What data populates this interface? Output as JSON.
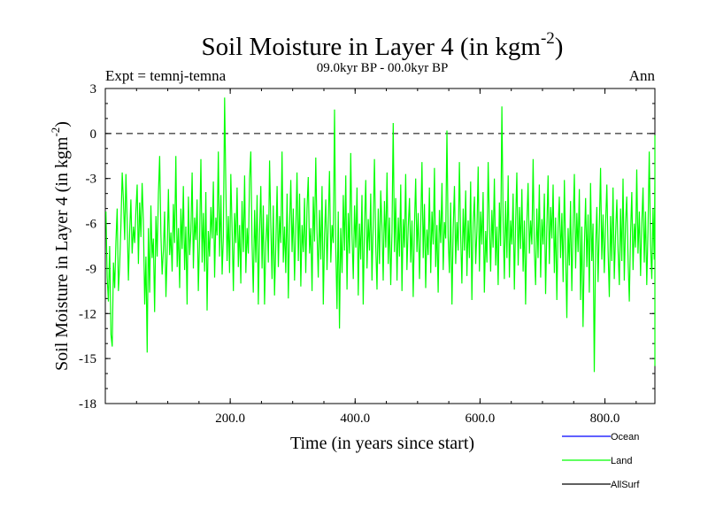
{
  "chart_data": {
    "type": "line",
    "title": "Soil Moisture in Layer 4 (in kgm",
    "title_sup": "-2",
    "title_close": ")",
    "subtitle": "09.0kyr BP - 00.0kyr BP",
    "experiment": "Expt = temnj-temna",
    "season": "Ann",
    "xlabel": "Time (in years since start)",
    "ylabel": "Soil Moisture in Layer 4 (in kgm",
    "ylabel_sup": "-2",
    "ylabel_close": ")",
    "xlim": [
      0,
      880
    ],
    "ylim": [
      -18,
      3
    ],
    "x_ticks": [
      "200.0",
      "400.0",
      "600.0",
      "800.0"
    ],
    "x_tick_values": [
      200,
      400,
      600,
      800
    ],
    "y_ticks": [
      "3",
      "0",
      "-3",
      "-6",
      "-9",
      "-12",
      "-15",
      "-18"
    ],
    "y_tick_values": [
      3,
      0,
      -3,
      -6,
      -9,
      -12,
      -15,
      -18
    ],
    "reference_line": 0,
    "legend": [
      {
        "name": "Ocean",
        "color": "#0000ff"
      },
      {
        "name": "Land",
        "color": "#00ff00"
      },
      {
        "name": "AllSurf",
        "color": "#000000"
      }
    ],
    "series": [
      {
        "name": "Land",
        "color": "#00ff00",
        "x_start": 1,
        "x_step": 2,
        "values": [
          -5.2,
          -9.6,
          -11.2,
          -7.5,
          -13.4,
          -14.2,
          -8.6,
          -10.3,
          -7.2,
          -5.0,
          -10.5,
          -8.8,
          -6.2,
          -2.6,
          -4.5,
          -7.1,
          -2.7,
          -5.9,
          -9.8,
          -6.6,
          -4.4,
          -8.0,
          -6.2,
          -7.3,
          -5.1,
          -3.4,
          -8.7,
          -4.6,
          -6.9,
          -3.3,
          -5.8,
          -11.4,
          -8.2,
          -14.6,
          -6.3,
          -10.6,
          -4.8,
          -8.3,
          -7.0,
          -11.9,
          -5.5,
          -8.2,
          -4.0,
          -1.5,
          -6.7,
          -9.4,
          -7.8,
          -5.2,
          -10.9,
          -7.9,
          -3.7,
          -8.1,
          -6.6,
          -9.2,
          -4.7,
          -7.3,
          -1.5,
          -8.9,
          -6.3,
          -10.3,
          -5.0,
          -7.7,
          -3.5,
          -9.1,
          -6.2,
          -11.4,
          -4.2,
          -8.1,
          -6.5,
          -2.6,
          -9.0,
          -5.6,
          -7.1,
          -4.4,
          -10.5,
          -6.8,
          -1.7,
          -8.6,
          -5.3,
          -9.2,
          -3.9,
          -11.8,
          -6.5,
          -8.2,
          -4.9,
          -7.0,
          -3.2,
          -9.6,
          -5.6,
          -6.8,
          -1.2,
          -8.2,
          -4.1,
          -9.4,
          -6.8,
          2.4,
          -3.6,
          -8.5,
          -5.5,
          -9.3,
          -2.7,
          -6.5,
          -10.5,
          -5.3,
          -7.3,
          -3.6,
          -8.9,
          -6.1,
          -10.0,
          -4.5,
          -7.9,
          -2.8,
          -9.3,
          -6.3,
          -8.0,
          -3.0,
          -1.2,
          -7.3,
          -10.6,
          -5.1,
          -8.6,
          -4.1,
          -11.4,
          -6.6,
          -3.5,
          -9.0,
          -4.8,
          -11.4,
          -7.3,
          -5.4,
          -8.6,
          -1.8,
          -6.1,
          -9.7,
          -4.8,
          -10.8,
          -7.3,
          -3.5,
          -8.9,
          -5.5,
          -7.3,
          -1.2,
          -8.6,
          -6.2,
          -9.3,
          -4.0,
          -11.0,
          -6.1,
          -3.1,
          -7.9,
          -5.0,
          -9.8,
          -6.5,
          -2.6,
          -8.5,
          -4.0,
          -10.2,
          -6.1,
          -7.9,
          -4.3,
          -9.3,
          -5.0,
          -2.9,
          -8.0,
          -6.3,
          -10.5,
          -4.2,
          -7.2,
          -1.6,
          -6.6,
          -9.6,
          -5.1,
          -8.4,
          -3.5,
          -11.4,
          -6.8,
          -4.4,
          -9.1,
          -5.9,
          -2.5,
          -8.6,
          -6.1,
          -7.3,
          1.6,
          -7.6,
          -11.7,
          -5.2,
          -13.0,
          -6.3,
          -9.3,
          -4.1,
          -7.8,
          -2.8,
          -10.4,
          -5.3,
          -8.0,
          -1.3,
          -6.7,
          -9.7,
          -4.8,
          -7.6,
          -3.6,
          -10.8,
          -6.0,
          -8.4,
          -4.1,
          -11.4,
          -6.0,
          -3.1,
          -9.0,
          -5.7,
          -7.8,
          -4.0,
          -9.8,
          -6.1,
          -1.7,
          -7.5,
          -10.4,
          -5.0,
          -8.7,
          -3.8,
          -6.2,
          -9.8,
          -4.5,
          -7.6,
          -2.6,
          -8.7,
          -5.6,
          -10.1,
          -6.6,
          0.7,
          -7.9,
          -4.3,
          -9.8,
          -5.6,
          -8.2,
          -3.4,
          -10.5,
          -5.7,
          -7.6,
          -2.7,
          -9.1,
          -6.2,
          -4.3,
          -8.6,
          -5.8,
          -10.9,
          -6.2,
          -3.0,
          -7.9,
          -5.3,
          -9.7,
          -6.2,
          -1.9,
          -8.3,
          -4.7,
          -10.3,
          -6.4,
          -8.1,
          -3.6,
          -9.3,
          -5.2,
          -7.4,
          -2.3,
          -8.9,
          -6.1,
          -10.6,
          -5.1,
          -7.3,
          -3.3,
          -9.1,
          -5.9,
          -7.0,
          0.2,
          -6.9,
          -9.3,
          -4.6,
          -11.4,
          -6.3,
          -3.5,
          -8.7,
          -5.9,
          -7.8,
          -1.9,
          -6.7,
          -10.0,
          -5.0,
          -7.8,
          -3.8,
          -9.5,
          -5.8,
          -8.3,
          -3.2,
          -11.1,
          -6.0,
          -4.2,
          -8.7,
          -6.5,
          -2.2,
          -9.2,
          -5.2,
          -7.4,
          -3.9,
          -10.6,
          -6.5,
          -8.6,
          -1.9,
          -6.0,
          -9.2,
          -5.1,
          -7.6,
          -3.0,
          -8.8,
          -6.2,
          -10.1,
          -4.6,
          -7.5,
          1.8,
          -5.8,
          -9.7,
          -4.5,
          -8.3,
          -2.8,
          -9.6,
          -5.8,
          -7.4,
          -4.0,
          -10.4,
          -6.0,
          -2.6,
          -8.8,
          -4.9,
          -7.7,
          -3.7,
          -9.2,
          -5.8,
          -11.4,
          -6.0,
          -3.3,
          -8.0,
          -5.8,
          -7.4,
          -1.7,
          -7.8,
          -10.1,
          -5.0,
          -8.3,
          -3.4,
          -9.6,
          -5.7,
          -7.4,
          -4.0,
          -10.7,
          -6.3,
          -2.8,
          -8.7,
          -4.9,
          -7.0,
          -3.4,
          -9.3,
          -5.6,
          -11.1,
          -6.3,
          -4.2,
          -8.3,
          -5.3,
          -9.9,
          -3.1,
          -7.8,
          -12.3,
          -6.3,
          -8.8,
          -4.5,
          -10.5,
          -6.1,
          -2.7,
          -9.0,
          -5.3,
          -7.9,
          -3.7,
          -11.1,
          -6.2,
          -12.9,
          -7.6,
          -4.3,
          -8.9,
          -5.4,
          -10.6,
          -3.3,
          -8.5,
          -6.0,
          -15.9,
          -7.6,
          -4.9,
          -9.9,
          -6.2,
          -2.3,
          -8.4,
          -5.4,
          -9.3,
          -6.0,
          -3.4,
          -7.8,
          -10.9,
          -5.5,
          -8.5,
          -3.6,
          -9.7,
          -6.8,
          -4.4,
          -7.8,
          -10.1,
          -5.0,
          -8.5,
          -3.0,
          -9.8,
          -6.0,
          -4.2,
          -8.4,
          -11.2,
          -6.7,
          -3.9,
          -9.1,
          -6.0,
          -7.6,
          -2.4,
          -8.0,
          -5.2,
          -9.5,
          -6.0,
          -3.6,
          -8.6,
          -5.2,
          -10.1,
          -6.5,
          -1.2,
          -7.4,
          -9.7,
          -5.0,
          -8.4,
          -2.7,
          -6.6,
          -9.1,
          -5.6,
          -7.4,
          -3.9,
          -10.1,
          -6.6,
          -8.8,
          -4.7,
          -11.4,
          -5.6,
          -0.1,
          -6.5,
          -9.6,
          -4.9,
          -8.3,
          -2.9,
          -9.6,
          -5.7,
          -7.3,
          -4.1,
          -15.5,
          -6.4,
          -3.1,
          -8.8,
          -5.4,
          -10.1,
          -6.3,
          -2.2,
          -8.4,
          -6.6,
          -9.1,
          -3.2,
          -7.8,
          -5.0,
          -9.6,
          -6.5,
          -4.2,
          -7.6,
          -5.2,
          -8.3,
          -3.7,
          -6.9,
          -9.3,
          -5.0,
          -7.2,
          -4.3,
          -6.7,
          -8.1,
          -2.8
        ]
      }
    ]
  }
}
